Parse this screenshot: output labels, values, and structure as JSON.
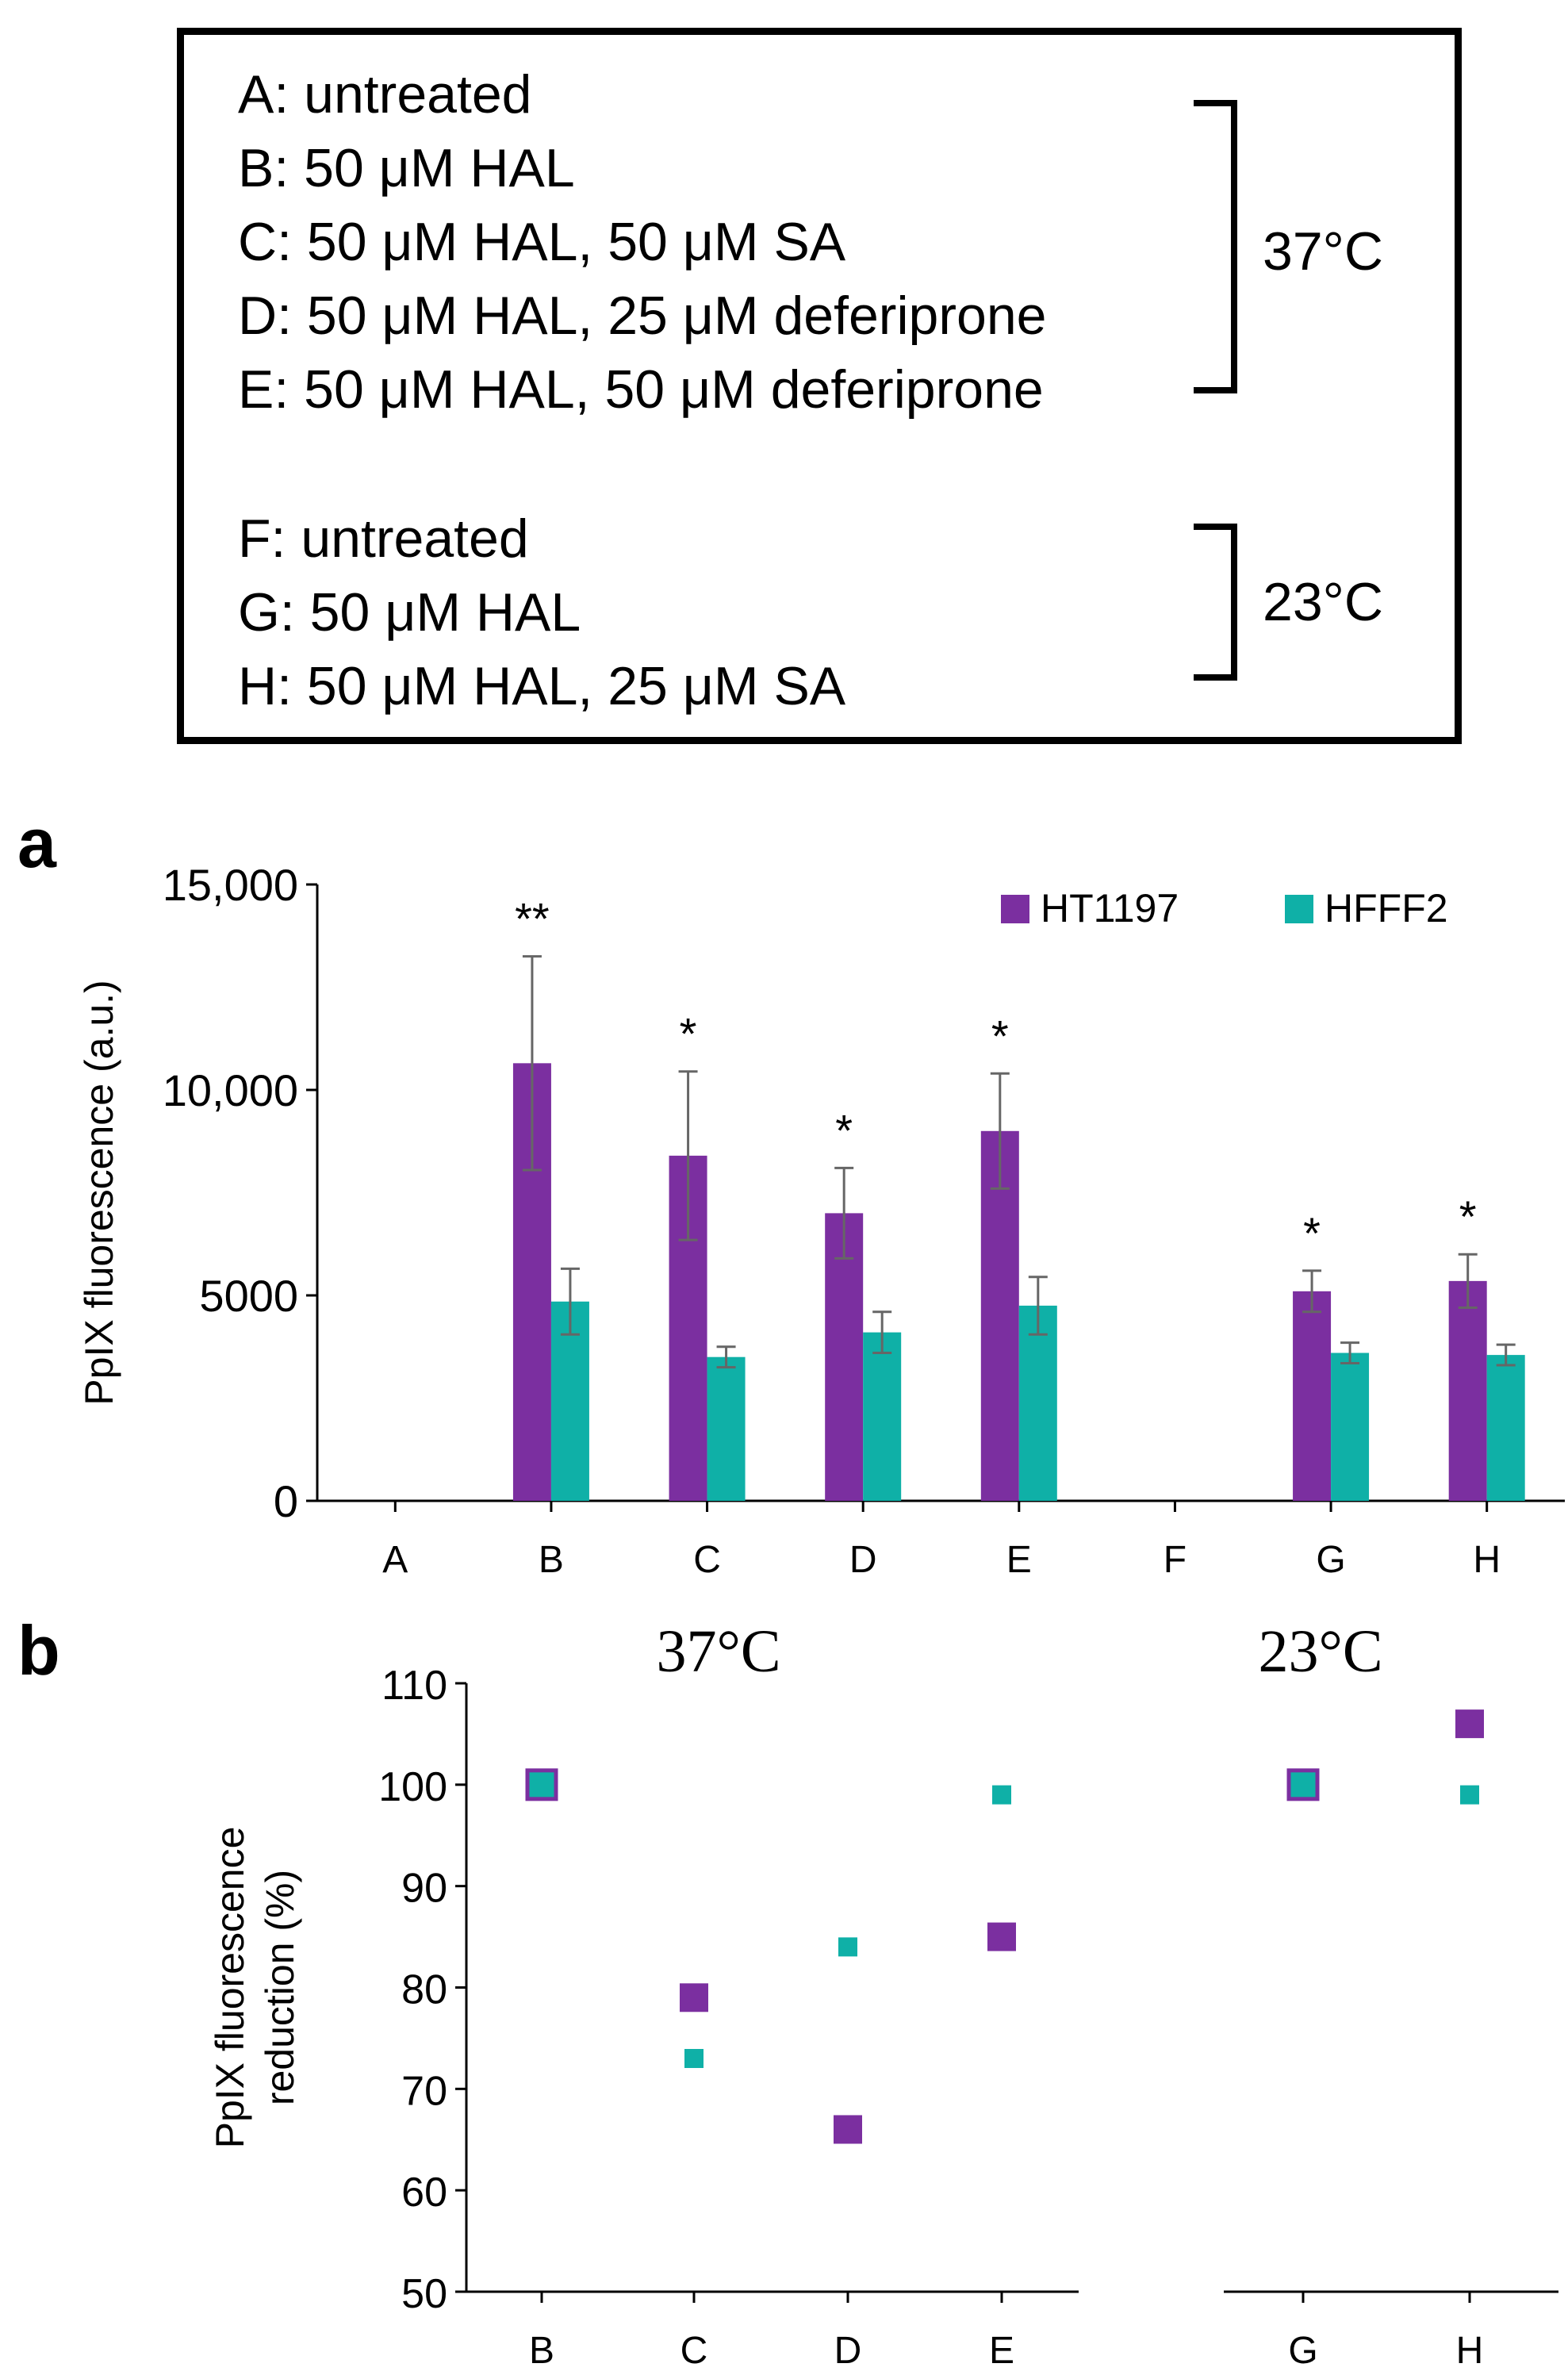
{
  "conditions": {
    "group_37": [
      "A: untreated",
      "B: 50 μM HAL",
      "C: 50 μM HAL, 50 μM SA",
      "D: 50 μM HAL, 25 μM deferiprone",
      "E: 50 μM HAL, 50 μM deferiprone"
    ],
    "group_37_label": "37°C",
    "group_23": [
      "F: untreated",
      "G: 50 μM HAL",
      "H: 50 μM HAL, 25 μM SA"
    ],
    "group_23_label": "23°C"
  },
  "panel_a_letter": "a",
  "panel_b_letter": "b",
  "colors": {
    "ht1197": "#7b2fa0",
    "hfff2": "#0fb0a7",
    "ht1197_edge": "#5a1f7a",
    "hfff2_edge": "#0a8a83",
    "b_overlap_edge": "#3a3fa0"
  },
  "chart_data": [
    {
      "type": "bar",
      "panel": "a",
      "categories": [
        "A",
        "B",
        "C",
        "D",
        "E",
        "F",
        "G",
        "H"
      ],
      "series": [
        {
          "name": "HT1197",
          "values": [
            0,
            10650,
            8400,
            7000,
            9000,
            0,
            5100,
            5350
          ],
          "errors": [
            0,
            2600,
            2050,
            1100,
            1400,
            0,
            500,
            650
          ]
        },
        {
          "name": "HFFF2",
          "values": [
            0,
            4850,
            3500,
            4100,
            4750,
            0,
            3600,
            3550
          ],
          "errors": [
            0,
            800,
            250,
            500,
            700,
            0,
            250,
            250
          ]
        }
      ],
      "significance": [
        "",
        "**",
        "*",
        "*",
        "*",
        "",
        "*",
        "*"
      ],
      "ylabel": "PpIX fluorescence (a.u.)",
      "xlabel": "",
      "ylim": [
        0,
        15000
      ],
      "yticks": [
        0,
        5000,
        10000,
        15000
      ],
      "ytick_labels": [
        "0",
        "5000",
        "10,000",
        "15,000"
      ],
      "legend_position": "top-right"
    },
    {
      "type": "scatter",
      "panel": "b",
      "groups": [
        {
          "title": "37°C",
          "categories": [
            "B",
            "C",
            "D",
            "E"
          ]
        },
        {
          "title": "23°C",
          "categories": [
            "G",
            "H"
          ]
        }
      ],
      "series": [
        {
          "name": "HT1197",
          "values": {
            "B": 100,
            "C": 79,
            "D": 66,
            "E": 85,
            "G": 100,
            "H": 106
          }
        },
        {
          "name": "HFFF2",
          "values": {
            "B": 100,
            "C": 73,
            "D": 84,
            "E": 99,
            "G": 100,
            "H": 99
          }
        }
      ],
      "ylabel": [
        "PpIX fluorescence",
        "reduction (%)"
      ],
      "ylim": [
        50,
        110
      ],
      "yticks": [
        50,
        60,
        70,
        80,
        90,
        100,
        110
      ],
      "ytick_labels": [
        "50",
        "60",
        "70",
        "80",
        "90",
        "100",
        "110"
      ]
    }
  ]
}
